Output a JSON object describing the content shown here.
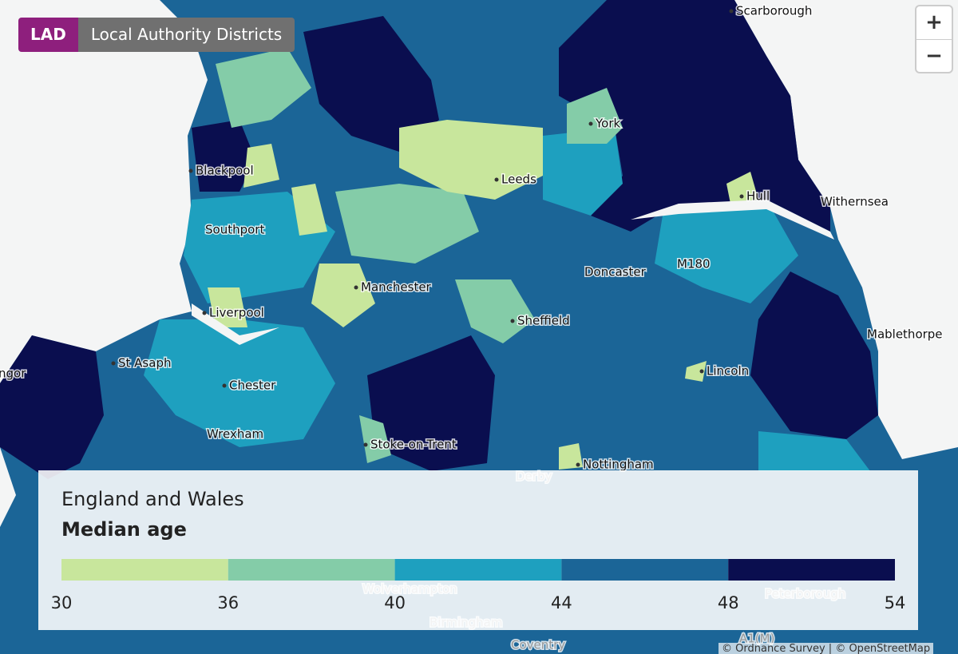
{
  "layer_badge": {
    "code": "LAD",
    "name": "Local Authority Districts"
  },
  "zoom": {
    "in": "+",
    "out": "−"
  },
  "places": [
    "Scarborough",
    "York",
    "Blackpool",
    "Leeds",
    "Hull",
    "Withernsea",
    "Southport",
    "Doncaster",
    "M180",
    "Manchester",
    "Liverpool",
    "Sheffield",
    "Mablethorpe",
    "St Asaph",
    "Lincoln",
    "ngor",
    "Chester",
    "Wrexham",
    "Stoke-on-Trent",
    "Nottingham",
    "Derby",
    "Wolverhampton",
    "Peterborough",
    "Birmingham",
    "Coventry",
    "A1(M)"
  ],
  "legend": {
    "area": "England and Wales",
    "measure": "Median age",
    "breaks": [
      30,
      36,
      40,
      44,
      48,
      54
    ],
    "colors": [
      "#c8e69c",
      "#84cca8",
      "#1ea0bf",
      "#1b6597",
      "#0a0e4f"
    ]
  },
  "attribution": "© Ordnance Survey | © OpenStreetMap"
}
